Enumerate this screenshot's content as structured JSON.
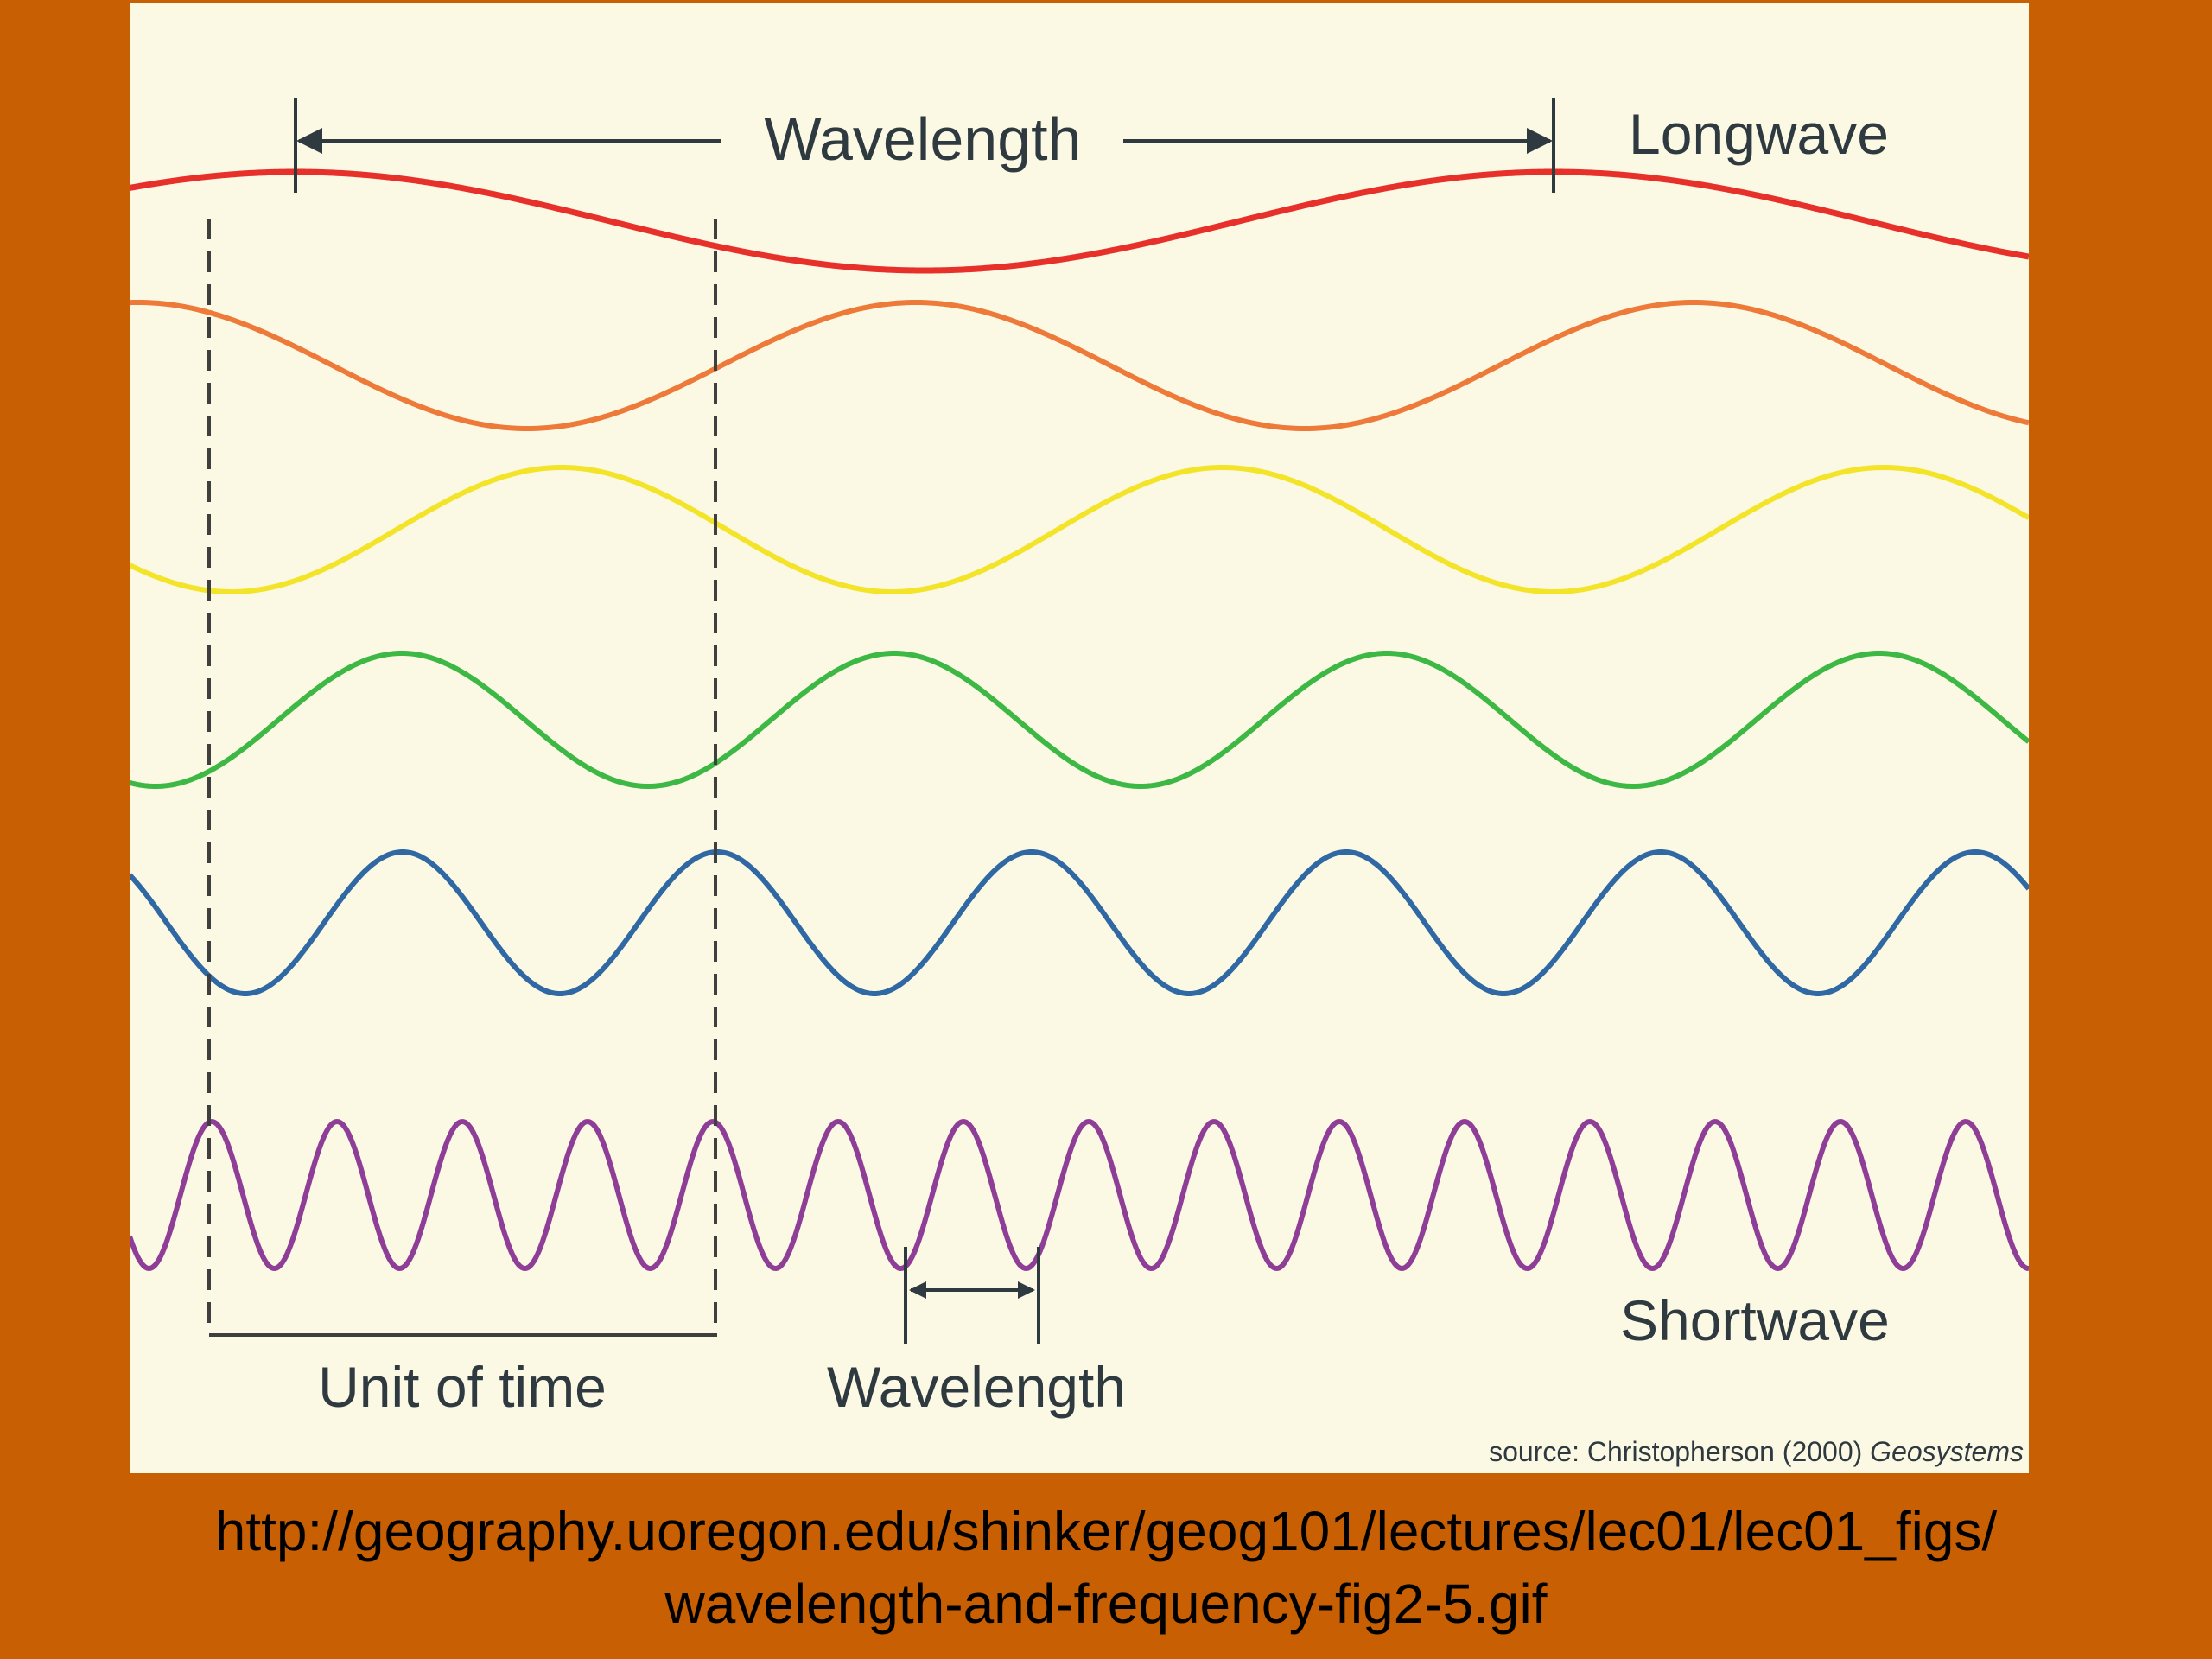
{
  "figure": {
    "wavelength_top": "Wavelength",
    "longwave": "Longwave",
    "shortwave": "Shortwave",
    "unit_of_time": "Unit of time",
    "wavelength_bottom": "Wavelength",
    "source_prefix": "source: Christopherson (2000) ",
    "source_title": "Geosystems",
    "colors": {
      "background": "#FBF8E3",
      "frame": "#C85F02",
      "annotation": "#2f3a40"
    },
    "waves": [
      {
        "name": "red-wave",
        "color": "#E8302B"
      },
      {
        "name": "orange-wave",
        "color": "#EE7A3A"
      },
      {
        "name": "yellow-wave",
        "color": "#F3E42A"
      },
      {
        "name": "green-wave",
        "color": "#3DB845"
      },
      {
        "name": "blue-wave",
        "color": "#2F68A3"
      },
      {
        "name": "purple-wave",
        "color": "#8E3E96"
      }
    ]
  },
  "caption": {
    "line1": "http://geography.uoregon.edu/shinker/geog101/lectures/lec01/lec01_figs/",
    "line2": "wavelength-and-frequency-fig2-5.gif"
  }
}
